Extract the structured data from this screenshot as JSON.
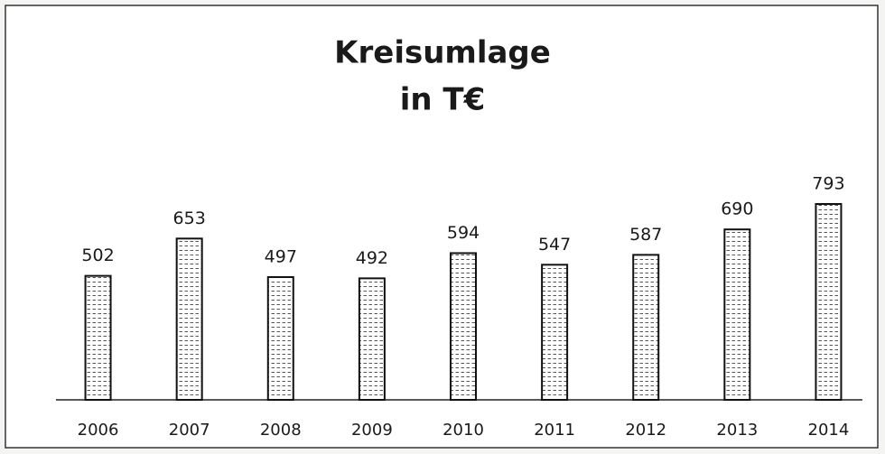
{
  "chart_data": {
    "type": "bar",
    "title": [
      "Kreisumlage",
      "in T€"
    ],
    "categories": [
      "2006",
      "2007",
      "2008",
      "2009",
      "2010",
      "2011",
      "2012",
      "2013",
      "2014"
    ],
    "values": [
      502,
      653,
      497,
      492,
      594,
      547,
      587,
      690,
      793
    ],
    "color": "#ffffff",
    "grid": false
  }
}
